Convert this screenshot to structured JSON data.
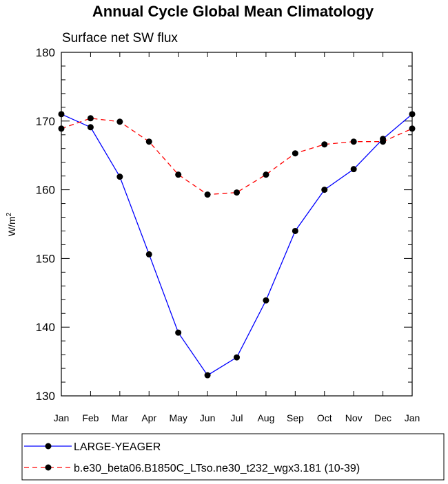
{
  "chart_data": {
    "type": "line",
    "title": "Annual Cycle Global Mean Climatology",
    "subtitle": "Surface net SW flux",
    "ylabel": "W/m",
    "ylabel_sup": "2",
    "ylim": [
      130,
      180
    ],
    "yticks": [
      130,
      140,
      150,
      160,
      170,
      180
    ],
    "categories": [
      "Jan",
      "Feb",
      "Mar",
      "Apr",
      "May",
      "Jun",
      "Jul",
      "Aug",
      "Sep",
      "Oct",
      "Nov",
      "Dec",
      "Jan"
    ],
    "series": [
      {
        "name": "LARGE-YEAGER",
        "color": "#0000ff",
        "dash": "solid",
        "values": [
          171.0,
          169.1,
          161.9,
          150.6,
          139.2,
          133.0,
          135.6,
          143.9,
          154.0,
          160.0,
          163.0,
          167.4,
          171.0
        ]
      },
      {
        "name": "b.e30_beta06.B1850C_LTso.ne30_t232_wgx3.181 (10-39)",
        "color": "#ff0000",
        "dash": "dashed",
        "values": [
          168.9,
          170.4,
          169.9,
          167.0,
          162.2,
          159.3,
          159.6,
          162.2,
          165.3,
          166.6,
          167.0,
          167.0,
          168.9
        ]
      }
    ],
    "grid": false,
    "legend_position": "bottom"
  }
}
